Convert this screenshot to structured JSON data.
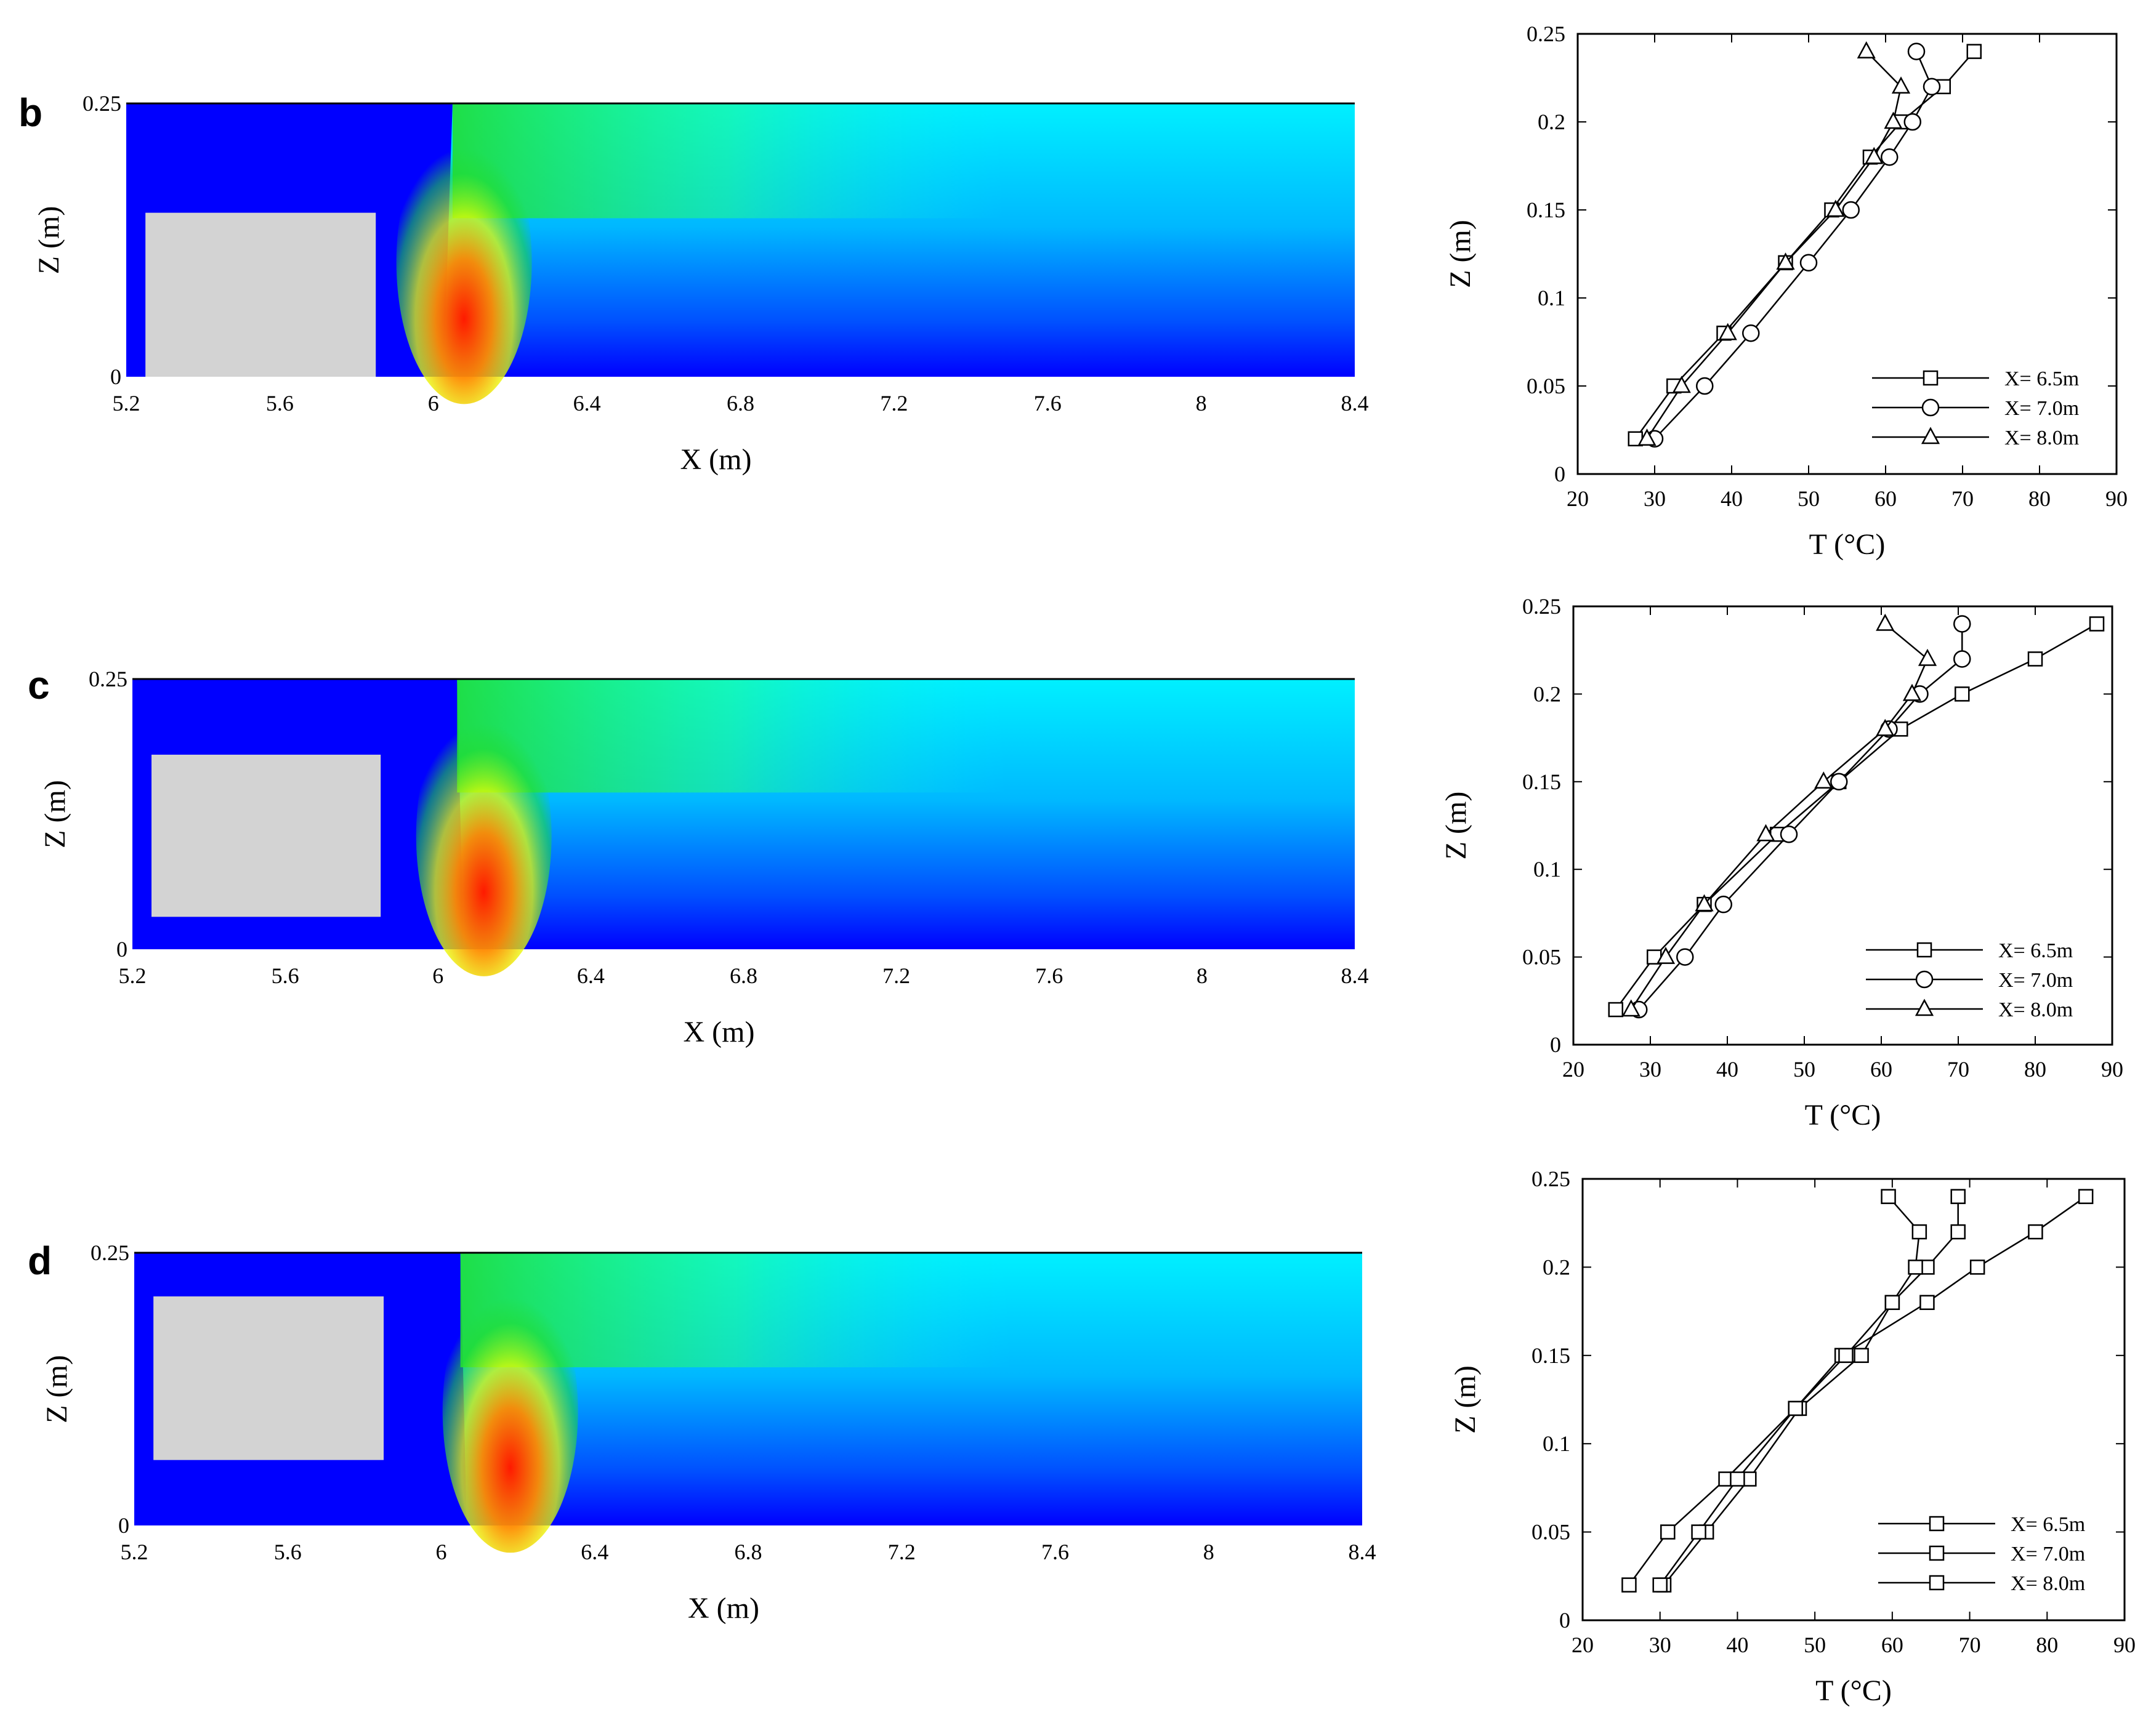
{
  "colors": {
    "cold": "#0000ff",
    "cyan": "#00f0ff",
    "green": "#22dd33",
    "hot": "#ff1a00",
    "block": "#d3d3d3",
    "line": "#000000"
  },
  "chart_data": [
    {
      "panel": "b",
      "type": "heatmap",
      "xlabel": "X (m)",
      "ylabel": "Z (m)",
      "xlim": [
        5.2,
        8.4
      ],
      "ylim": [
        0,
        0.25
      ],
      "x_ticks": [
        "5.2",
        "5.6",
        "6",
        "6.4",
        "6.8",
        "7.2",
        "7.6",
        "8",
        "8.4"
      ],
      "y_ticks": [
        "0",
        "0.25"
      ],
      "obstacle": {
        "x": [
          5.25,
          5.85
        ],
        "z": [
          0,
          0.15
        ]
      },
      "plume_front_x": {
        "z0": 5.93,
        "ztop": 6.05
      },
      "hot_core_x": 6.08
    },
    {
      "panel": "b",
      "type": "line",
      "xlabel": "T (°C)",
      "ylabel": "Z (m)",
      "xlim": [
        20,
        90
      ],
      "ylim": [
        0,
        0.25
      ],
      "x_ticks": [
        "20",
        "30",
        "40",
        "50",
        "60",
        "70",
        "80",
        "90"
      ],
      "y_ticks": [
        "0",
        "0.05",
        "0.1",
        "0.15",
        "0.2",
        "0.25"
      ],
      "series": [
        {
          "name": "X= 6.5m",
          "marker": "square",
          "x": [
            27.5,
            32.5,
            39,
            47,
            53,
            58,
            62,
            67.5,
            71.5
          ],
          "y": [
            0.02,
            0.05,
            0.08,
            0.12,
            0.15,
            0.18,
            0.2,
            0.22,
            0.24
          ]
        },
        {
          "name": "X= 7.0m",
          "marker": "circle",
          "x": [
            30,
            36.5,
            42.5,
            50,
            55.5,
            60.5,
            63.5,
            66,
            64
          ],
          "y": [
            0.02,
            0.05,
            0.08,
            0.12,
            0.15,
            0.18,
            0.2,
            0.22,
            0.24
          ]
        },
        {
          "name": "X= 8.0m",
          "marker": "triangle",
          "x": [
            29,
            33.5,
            39.5,
            47,
            53.5,
            58.5,
            61,
            62,
            57.5
          ],
          "y": [
            0.02,
            0.05,
            0.08,
            0.12,
            0.15,
            0.18,
            0.2,
            0.22,
            0.24
          ]
        }
      ]
    },
    {
      "panel": "c",
      "type": "heatmap",
      "xlabel": "X (m)",
      "ylabel": "Z (m)",
      "xlim": [
        5.2,
        8.4
      ],
      "ylim": [
        0,
        0.25
      ],
      "x_ticks": [
        "5.2",
        "5.6",
        "6",
        "6.4",
        "6.8",
        "7.2",
        "7.6",
        "8",
        "8.4"
      ],
      "y_ticks": [
        "0",
        "0.25"
      ],
      "obstacle": {
        "x": [
          5.25,
          5.85
        ],
        "z": [
          0.03,
          0.18
        ]
      },
      "plume_front_x": {
        "z0": 5.97,
        "ztop": 6.05
      },
      "hot_core_x": 6.12
    },
    {
      "panel": "c",
      "type": "line",
      "xlabel": "T (°C)",
      "ylabel": "Z (m)",
      "xlim": [
        20,
        90
      ],
      "ylim": [
        0,
        0.25
      ],
      "x_ticks": [
        "20",
        "30",
        "40",
        "50",
        "60",
        "70",
        "80",
        "90"
      ],
      "y_ticks": [
        "0",
        "0.05",
        "0.1",
        "0.15",
        "0.2",
        "0.25"
      ],
      "series": [
        {
          "name": "X= 6.5m",
          "marker": "square",
          "x": [
            25.5,
            30.5,
            37,
            46.5,
            54.5,
            62.5,
            70.5,
            80,
            88
          ],
          "y": [
            0.02,
            0.05,
            0.08,
            0.12,
            0.15,
            0.18,
            0.2,
            0.22,
            0.24
          ]
        },
        {
          "name": "X= 7.0m",
          "marker": "circle",
          "x": [
            28.5,
            34.5,
            39.5,
            48,
            54.5,
            61,
            65,
            70.5,
            70.5
          ],
          "y": [
            0.02,
            0.05,
            0.08,
            0.12,
            0.15,
            0.18,
            0.2,
            0.22,
            0.24
          ]
        },
        {
          "name": "X= 8.0m",
          "marker": "triangle",
          "x": [
            27.5,
            32,
            37,
            45,
            52.5,
            60.5,
            64,
            66,
            60.5
          ],
          "y": [
            0.02,
            0.05,
            0.08,
            0.12,
            0.15,
            0.18,
            0.2,
            0.22,
            0.24
          ]
        }
      ]
    },
    {
      "panel": "d",
      "type": "heatmap",
      "xlabel": "X (m)",
      "ylabel": "Z (m)",
      "xlim": [
        5.2,
        8.4
      ],
      "ylim": [
        0,
        0.25
      ],
      "x_ticks": [
        "5.2",
        "5.6",
        "6",
        "6.4",
        "6.8",
        "7.2",
        "7.6",
        "8",
        "8.4"
      ],
      "y_ticks": [
        "0",
        "0.25"
      ],
      "obstacle": {
        "x": [
          5.25,
          5.85
        ],
        "z": [
          0.06,
          0.21
        ]
      },
      "plume_front_x": {
        "z0": 5.97,
        "ztop": 6.05
      },
      "hot_core_x": 6.18
    },
    {
      "panel": "d",
      "type": "line",
      "xlabel": "T (°C)",
      "ylabel": "Z (m)",
      "xlim": [
        20,
        90
      ],
      "ylim": [
        0,
        0.25
      ],
      "x_ticks": [
        "20",
        "30",
        "40",
        "50",
        "60",
        "70",
        "80",
        "90"
      ],
      "y_ticks": [
        "0",
        "0.05",
        "0.1",
        "0.15",
        "0.2",
        "0.25"
      ],
      "series": [
        {
          "name": "X= 6.5m",
          "marker": "square",
          "x": [
            26,
            31,
            38.5,
            47.5,
            53.5,
            64.5,
            71,
            78.5,
            85
          ],
          "y": [
            0.02,
            0.05,
            0.08,
            0.12,
            0.15,
            0.18,
            0.2,
            0.22,
            0.24
          ]
        },
        {
          "name": "X= 7.0m",
          "marker": "square",
          "x": [
            30.5,
            36,
            41.5,
            48,
            56,
            60,
            64.5,
            68.5,
            68.5
          ],
          "y": [
            0.02,
            0.05,
            0.08,
            0.12,
            0.15,
            0.18,
            0.2,
            0.22,
            0.24
          ]
        },
        {
          "name": "X= 8.0m",
          "marker": "square",
          "x": [
            30,
            35,
            40,
            47.5,
            54,
            60,
            63,
            63.5,
            59.5
          ],
          "y": [
            0.02,
            0.05,
            0.08,
            0.12,
            0.15,
            0.18,
            0.2,
            0.22,
            0.24
          ]
        }
      ]
    }
  ]
}
